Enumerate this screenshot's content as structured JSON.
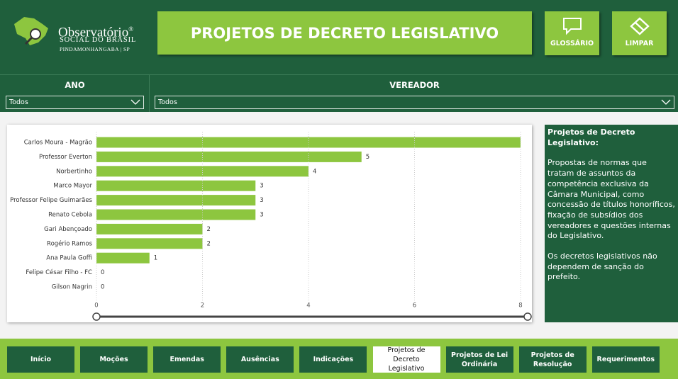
{
  "header": {
    "logo": {
      "name": "Observatório",
      "mark": "®",
      "subtitle": "SOCIAL DO BRASIL",
      "location": "PINDAMONHANGABA | SP"
    },
    "title": "PROJETOS DE DECRETO LEGISLATIVO",
    "buttons": [
      "GLOSSÁRIO",
      "LIMPAR"
    ]
  },
  "filters": [
    {
      "label": "ANO",
      "value": "Todos"
    },
    {
      "label": "VEREADOR",
      "value": "Todos"
    }
  ],
  "chart_data": {
    "type": "bar",
    "orientation": "horizontal",
    "color": "#8dc63f",
    "categories": [
      "Carlos Moura - Magrão",
      "Professor Everton",
      "Norbertinho",
      "Marco Mayor",
      "Professor Felipe Guimarães",
      "Renato Cebola",
      "Gari Abençoado",
      "Rogério Ramos",
      "Ana Paula Goffi",
      "Felipe César Filho - FC",
      "Gilson Nagrin"
    ],
    "values": [
      8,
      5,
      4,
      3,
      3,
      3,
      2,
      2,
      1,
      0,
      0
    ],
    "xlim": [
      0,
      8
    ],
    "xticks": [
      0,
      2,
      4,
      6,
      8
    ],
    "grid": true
  },
  "info": {
    "title": "Projetos de Decreto Legislativo:",
    "paragraphs": [
      "Propostas de normas que tratam de assuntos da competência exclusiva da Câmara Municipal, como concessão de títulos honoríficos, fixação de subsídios dos vereadores e questões internas do Legislativo.",
      "Os decretos legislativos não dependem de sanção do prefeito."
    ]
  },
  "navigation": {
    "items": [
      "Início",
      "Moções",
      "Emendas",
      "Ausências",
      "Indicações",
      "Projetos de Decreto Legislativo",
      "Projetos de Lei Ordinária",
      "Projetos de Resolução",
      "Requerimentos"
    ],
    "active": 5
  }
}
